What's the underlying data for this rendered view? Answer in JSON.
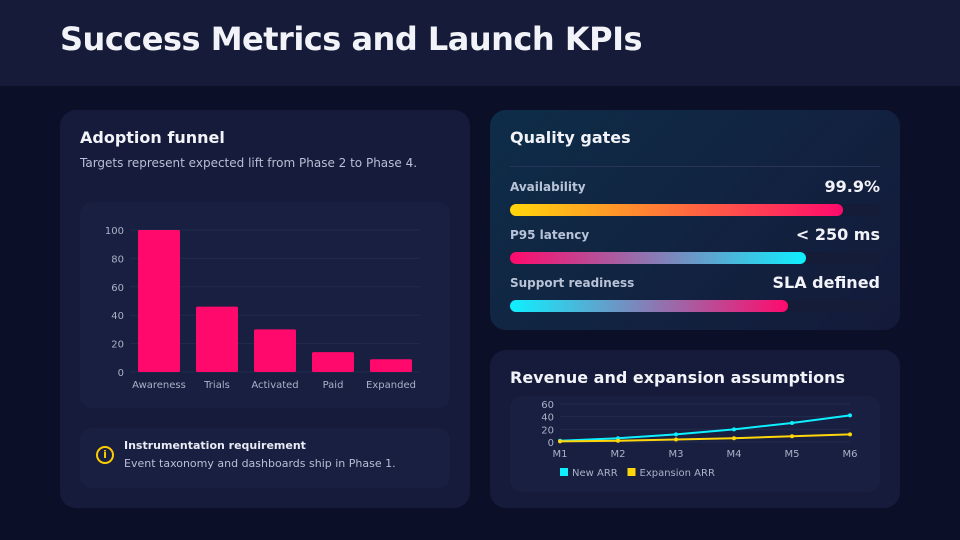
{
  "title": "Success Metrics and Launch KPIs",
  "funnel": {
    "heading": "Adoption funnel",
    "subtitle": "Targets represent expected lift from Phase 2 to Phase 4.",
    "note_title": "Instrumentation requirement",
    "note_text": "Event taxonomy and dashboards ship in Phase 1.",
    "note_icon": "info-icon"
  },
  "gates": {
    "heading": "Quality gates",
    "items": [
      {
        "label": "Availability",
        "value": "99.9%",
        "progress": 0.9,
        "gradient": [
          "#ffd60a",
          "#ff0a6c"
        ]
      },
      {
        "label": "P95 latency",
        "value": "< 250 ms",
        "progress": 0.8,
        "gradient": [
          "#ff0a6c",
          "#0ef0ff"
        ]
      },
      {
        "label": "Support readiness",
        "value": "SLA defined",
        "progress": 0.75,
        "gradient": [
          "#0ef0ff",
          "#ff0a6c"
        ]
      }
    ]
  },
  "revenue": {
    "heading": "Revenue and expansion assumptions"
  },
  "chart_data": [
    {
      "type": "bar",
      "categories": [
        "Awareness",
        "Trials",
        "Activated",
        "Paid",
        "Expanded"
      ],
      "values": [
        100,
        46,
        30,
        14,
        9
      ],
      "ylim": [
        0,
        100
      ],
      "yticks": [
        0,
        20,
        40,
        60,
        80,
        100
      ],
      "color": "#ff0a6c",
      "grid": true
    },
    {
      "type": "line",
      "categories": [
        "M1",
        "M2",
        "M3",
        "M4",
        "M5",
        "M6"
      ],
      "ylim": [
        0,
        60
      ],
      "yticks": [
        0,
        20,
        40,
        60
      ],
      "legend": "bottom",
      "series": [
        {
          "name": "New ARR",
          "values": [
            2,
            6,
            12,
            20,
            30,
            42
          ],
          "color": "#0ef0ff"
        },
        {
          "name": "Expansion ARR",
          "values": [
            1,
            2,
            4,
            6,
            9,
            12
          ],
          "color": "#ffd60a"
        }
      ]
    }
  ]
}
